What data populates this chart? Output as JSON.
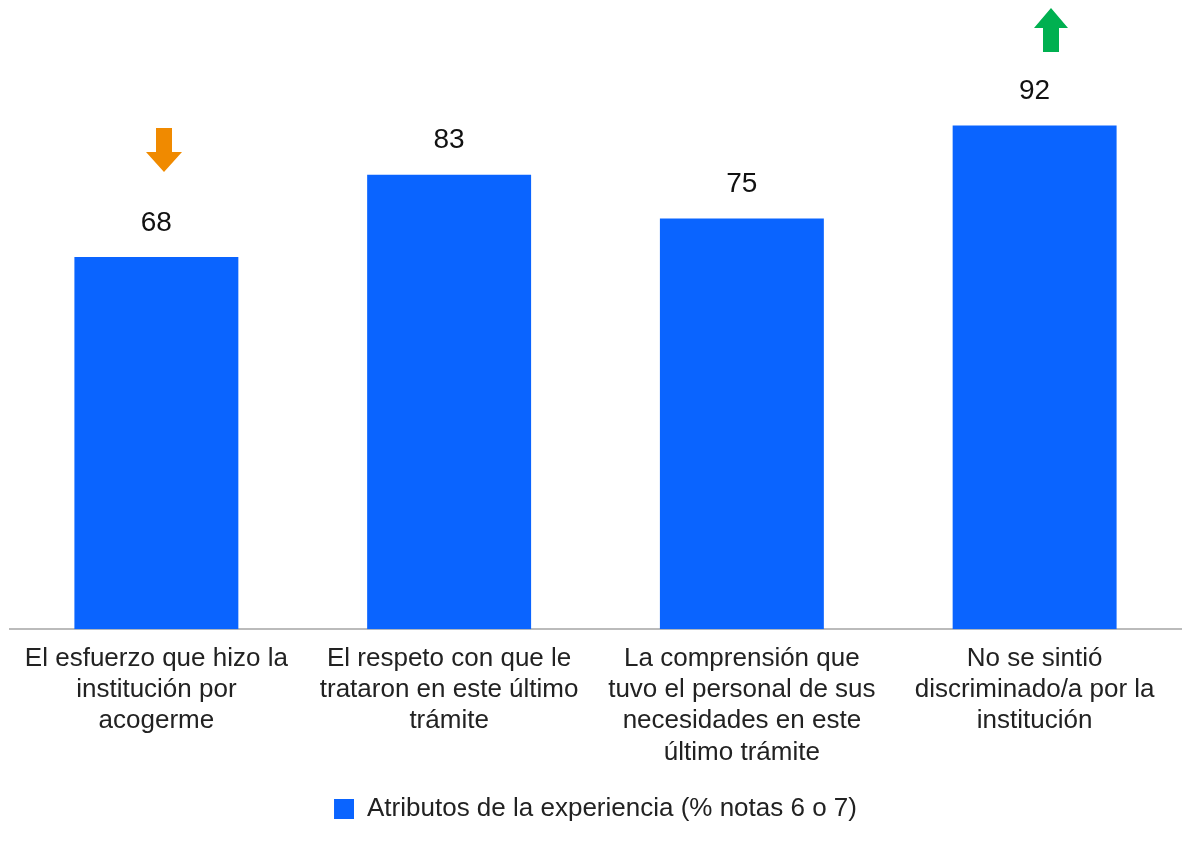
{
  "chart_data": {
    "type": "bar",
    "categories": [
      "El esfuerzo que hizo la institución por acogerme",
      "El respeto con que le trataron en este último trámite",
      "La comprensión que tuvo el personal de sus necesidades en este último trámite",
      "No se sintió discriminado/a por la institución"
    ],
    "series": [
      {
        "name": "Atributos de la experiencia (% notas 6 o 7)",
        "color": "#0a64ff",
        "values": [
          68,
          83,
          75,
          92
        ]
      }
    ],
    "tick_labels": "x",
    "data_labels": true,
    "legend": "bottom",
    "grid": false
  }
}
